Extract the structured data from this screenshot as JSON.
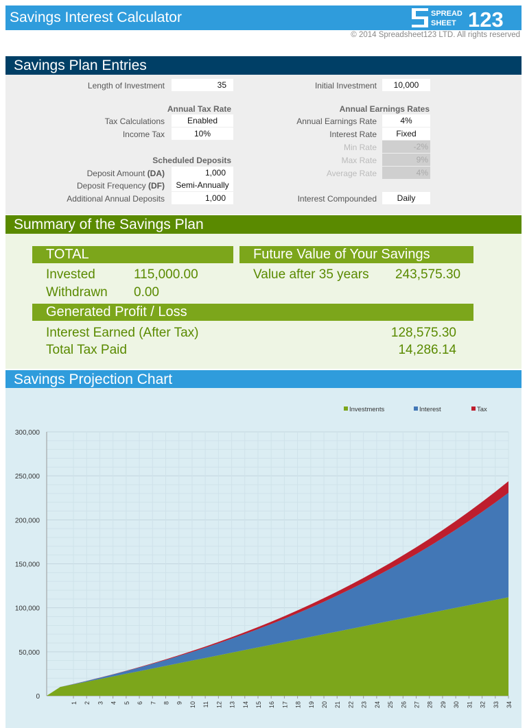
{
  "header": {
    "title": "Savings Interest Calculator",
    "logo_text": "SPREADSHEET123",
    "copyright": "© 2014 Spreadsheet123 LTD. All rights reserved"
  },
  "entries": {
    "title": "Savings Plan Entries",
    "length_label": "Length of Investment",
    "length_value": "35",
    "initial_label": "Initial Investment",
    "initial_value": "10,000",
    "tax_heading": "Annual Tax Rate",
    "tax_calc_label": "Tax Calculations",
    "tax_calc_value": "Enabled",
    "income_tax_label": "Income Tax",
    "income_tax_value": "10%",
    "deposits_heading": "Scheduled Deposits",
    "deposit_amount_label": "Deposit Amount ",
    "deposit_amount_abbr": "(DA)",
    "deposit_amount_value": "1,000",
    "deposit_freq_label": "Deposit Frequency ",
    "deposit_freq_abbr": "(DF)",
    "deposit_freq_value": "Semi-Annually",
    "additional_label": "Additional Annual Deposits",
    "additional_value": "1,000",
    "earnings_heading": "Annual Earnings Rates",
    "earnings_rate_label": "Annual Earnings Rate",
    "earnings_rate_value": "4%",
    "interest_rate_label": "Interest Rate",
    "interest_rate_value": "Fixed",
    "min_rate_label": "Min Rate",
    "min_rate_value": "-2%",
    "max_rate_label": "Max Rate",
    "max_rate_value": "9%",
    "avg_rate_label": "Average Rate",
    "avg_rate_value": "4%",
    "compounded_label": "Interest Compounded",
    "compounded_value": "Daily"
  },
  "summary": {
    "title": "Summary of the Savings Plan",
    "total_heading": "TOTAL",
    "invested_label": "Invested",
    "invested_value": "115,000.00",
    "withdrawn_label": "Withdrawn",
    "withdrawn_value": "0.00",
    "fv_heading": "Future Value of Your Savings",
    "fv_label": "Value after 35 years",
    "fv_value": "243,575.30",
    "profit_heading": "Generated Profit / Loss",
    "interest_label": "Interest Earned (After Tax)",
    "interest_value": "128,575.30",
    "tax_label": "Total Tax Paid",
    "tax_value": "14,286.14"
  },
  "chart_section": {
    "title": "Savings Projection Chart"
  },
  "colors": {
    "header": "#2f9cdc",
    "entries": "#003f66",
    "summary": "#5a8a00",
    "investments": "#7ca61b",
    "interest": "#4277b6",
    "tax": "#be1e2d"
  },
  "chart_data": {
    "type": "area",
    "stacked": true,
    "categories": [
      "",
      "",
      "1",
      "2",
      "3",
      "4",
      "5",
      "6",
      "7",
      "8",
      "9",
      "10",
      "11",
      "12",
      "13",
      "14",
      "15",
      "16",
      "17",
      "18",
      "19",
      "20",
      "21",
      "22",
      "23",
      "24",
      "25",
      "26",
      "27",
      "28",
      "29",
      "30",
      "31",
      "32",
      "33",
      "34"
    ],
    "series": [
      {
        "name": "Investments",
        "values": [
          0,
          10000,
          13000,
          16000,
          19000,
          22000,
          25000,
          28000,
          31000,
          34000,
          37000,
          40000,
          43000,
          46000,
          49000,
          52000,
          55000,
          58000,
          61000,
          64000,
          67000,
          70000,
          73000,
          76000,
          79000,
          82000,
          85000,
          88000,
          91000,
          94000,
          97000,
          100000,
          103000,
          106000,
          109000,
          112000
        ]
      },
      {
        "name": "Interest",
        "values": [
          0,
          0,
          367,
          858,
          1477,
          2229,
          3118,
          4150,
          5330,
          6663,
          8155,
          9812,
          11640,
          13645,
          15834,
          18213,
          20790,
          23571,
          26565,
          29779,
          33221,
          36899,
          40822,
          45000,
          49441,
          54155,
          59152,
          64442,
          70037,
          75947,
          82184,
          88760,
          95688,
          102980,
          110650,
          118711
        ]
      },
      {
        "name": "Tax",
        "values": [
          0,
          0,
          41,
          95,
          164,
          248,
          346,
          461,
          592,
          740,
          906,
          1090,
          1293,
          1516,
          1759,
          2024,
          2310,
          2619,
          2952,
          3309,
          3691,
          4100,
          4536,
          5000,
          5493,
          6017,
          6572,
          7160,
          7782,
          8439,
          9132,
          9862,
          10632,
          11442,
          12294,
          13190
        ]
      }
    ],
    "yticks": [
      "0",
      "50,000",
      "100,000",
      "150,000",
      "200,000",
      "250,000",
      "300,000"
    ],
    "ylim": [
      0,
      300000
    ],
    "grid": true,
    "legend": "top-right"
  }
}
